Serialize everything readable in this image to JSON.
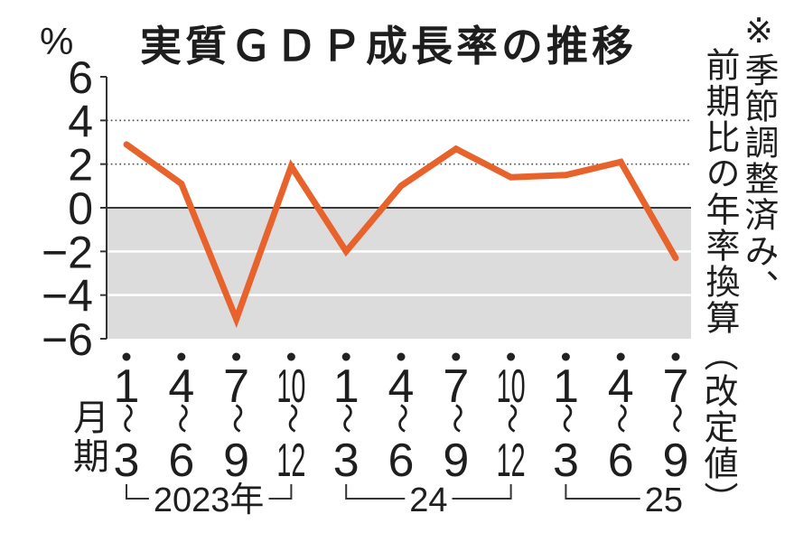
{
  "chart_data": {
    "type": "line",
    "title": "実質ＧＤＰ成長率の推移",
    "ylabel": "%",
    "xlabel": "月期",
    "ylim": [
      -6,
      6
    ],
    "yticks": [
      "6",
      "4",
      "2",
      "0",
      "−2",
      "−4",
      "−6"
    ],
    "categories": [
      "1～3",
      "4～6",
      "7～9",
      "10～12",
      "1～3",
      "4～6",
      "7～9",
      "10～12",
      "1～3",
      "4～6",
      "7～9"
    ],
    "year_groups": [
      {
        "label": "2023年",
        "start": 0,
        "end": 3
      },
      {
        "label": "24",
        "start": 4,
        "end": 7
      },
      {
        "label": "25",
        "start": 8,
        "end": 10
      }
    ],
    "series": [
      {
        "values": [
          2.9,
          1.1,
          -5.1,
          1.9,
          -2.0,
          1.0,
          2.7,
          1.4,
          1.5,
          2.1,
          -2.3
        ],
        "color": "#e8622b"
      }
    ],
    "grid": true,
    "shaded_below_zero": true,
    "note": [
      "※季節調整済み、",
      "前期比の年率換算"
    ],
    "annotation": "（改定値）"
  },
  "colors": {
    "line": "#e8622b",
    "shade": "#dcdcdc",
    "text": "#1e1e1e"
  }
}
